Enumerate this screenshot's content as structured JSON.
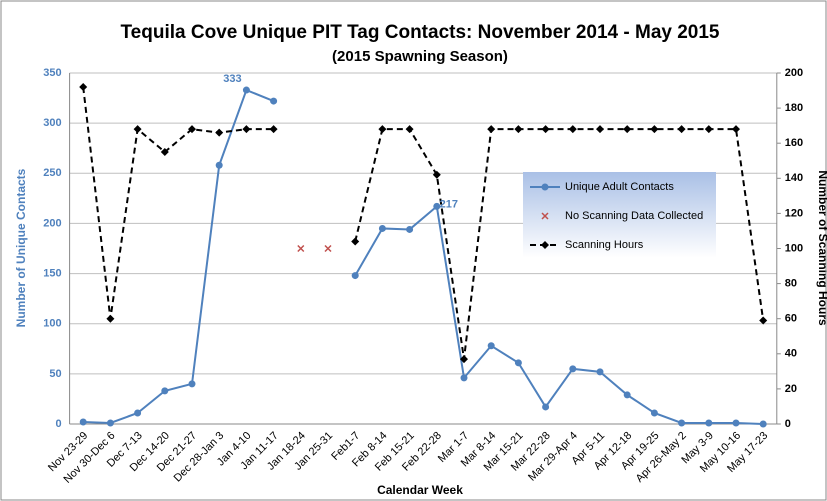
{
  "chart_data": {
    "type": "line",
    "title": "Tequila Cove Unique PIT Tag Contacts: November 2014 - May 2015",
    "subtitle": "(2015 Spawning Season)",
    "x_label": "Calendar Week",
    "y_label": "Number of Unique Contacts",
    "y2_label": "Number of Scanning Hours",
    "categories": [
      "Nov 23-29",
      "Nov 30-Dec 6",
      "Dec 7-13",
      "Dec 14-20",
      "Dec 21-27",
      "Dec 28-Jan 3",
      "Jan 4-10",
      "Jan 11-17",
      "Jan 18-24",
      "Jan 25-31",
      "Feb1-7",
      "Feb 8-14",
      "Feb 15-21",
      "Feb 22-28",
      "Mar 1-7",
      "Mar 8-14",
      "Mar 15-21",
      "Mar 22-28",
      "Mar 29-Apr 4",
      "Apr 5-11",
      "Apr 12-18",
      "Apr 19-25",
      "Apr 26-May 2",
      "May 3-9",
      "May 10-16",
      "May 17-23"
    ],
    "series": [
      {
        "name": "Unique Adult Contacts",
        "color": "#4f81bd",
        "axis": "y",
        "values": [
          2,
          1,
          11,
          33,
          40,
          258,
          333,
          322,
          null,
          null,
          148,
          195,
          194,
          217,
          46,
          78,
          61,
          17,
          55,
          52,
          29,
          11,
          1,
          1,
          1,
          0
        ]
      },
      {
        "name": "No Scanning Data Collected",
        "color": "#c0504d",
        "axis": "y",
        "values": [
          null,
          null,
          null,
          null,
          null,
          null,
          null,
          null,
          175,
          175,
          null,
          null,
          null,
          null,
          null,
          null,
          null,
          null,
          null,
          null,
          null,
          null,
          null,
          null,
          null,
          null
        ]
      },
      {
        "name": "Scanning Hours",
        "color": "#000000",
        "axis": "y2",
        "values": [
          192,
          60,
          168,
          155,
          168,
          166,
          168,
          168,
          null,
          null,
          104,
          168,
          168,
          142,
          37,
          168,
          168,
          168,
          168,
          168,
          168,
          168,
          168,
          168,
          168,
          59
        ]
      }
    ],
    "ylim": [
      0,
      350
    ],
    "yticks": [
      0,
      50,
      100,
      150,
      200,
      250,
      300,
      350
    ],
    "y2lim": [
      0,
      200
    ],
    "y2ticks": [
      0,
      20,
      40,
      60,
      80,
      100,
      120,
      140,
      160,
      180,
      200
    ],
    "grid": true
  }
}
